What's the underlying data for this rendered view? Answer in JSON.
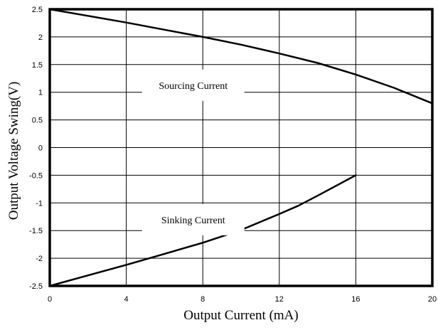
{
  "chart_data": {
    "type": "line",
    "title": "",
    "xlabel": "Output Current (mA)",
    "ylabel": "Output Voltage Swing(V)",
    "xlim": [
      0,
      20
    ],
    "ylim": [
      -2.5,
      2.5
    ],
    "xticks": [
      "0",
      "4",
      "8",
      "12",
      "16",
      "20"
    ],
    "yticks": [
      "2.5",
      "2",
      "1.5",
      "1",
      "0.5",
      "0",
      "-0.5",
      "-1",
      "-1.5",
      "-2",
      "-2.5"
    ],
    "grid": true,
    "legend": "none",
    "line_color": "#000000",
    "series": [
      {
        "name": "Sourcing Current",
        "x": [
          0,
          2,
          4,
          6,
          8,
          10,
          12,
          14,
          16,
          18,
          20
        ],
        "y": [
          2.5,
          2.38,
          2.26,
          2.13,
          2.0,
          1.86,
          1.7,
          1.53,
          1.32,
          1.08,
          0.8
        ]
      },
      {
        "name": "Sinking Current",
        "x": [
          0,
          2,
          4,
          6,
          8,
          10,
          12,
          13,
          14,
          16
        ],
        "y": [
          -2.5,
          -2.31,
          -2.12,
          -1.92,
          -1.72,
          -1.49,
          -1.2,
          -1.05,
          -0.87,
          -0.5
        ]
      }
    ],
    "annotations": [
      {
        "text": "Sourcing Current",
        "x": 7.5,
        "y": 1.05
      },
      {
        "text": "Sinking Current",
        "x": 7.5,
        "y": -1.38
      }
    ]
  }
}
